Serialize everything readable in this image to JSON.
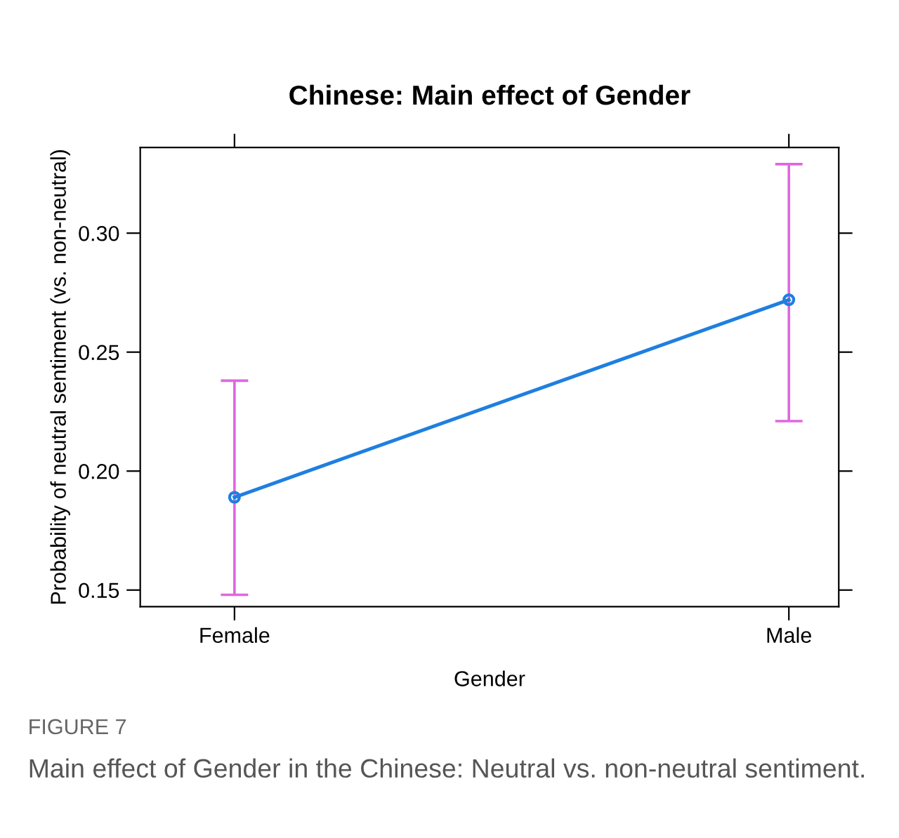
{
  "chart_data": {
    "type": "line",
    "title": "Chinese: Main effect of Gender",
    "xlabel": "Gender",
    "ylabel": "Probability of neutral sentiment (vs. non-neutral)",
    "categories": [
      "Female",
      "Male"
    ],
    "series": [
      {
        "color": "#1e7fe0",
        "values": [
          0.189,
          0.272
        ],
        "errors": [
          [
            0.148,
            0.238
          ],
          [
            0.221,
            0.329
          ]
        ]
      }
    ],
    "ylim": [
      0.143,
      0.336
    ],
    "yticks": [
      0.15,
      {
        "value": 0.2,
        "label": "0.20"
      },
      0.25,
      {
        "value": 0.3,
        "label": "0.30"
      }
    ],
    "marker": "circle",
    "line_style": "solid",
    "grid": false,
    "legend": false,
    "annotations": [
      "FIGURE 7",
      "Main effect of Gender in the Chinese: Neutral vs. non-neutral sentiment."
    ]
  }
}
